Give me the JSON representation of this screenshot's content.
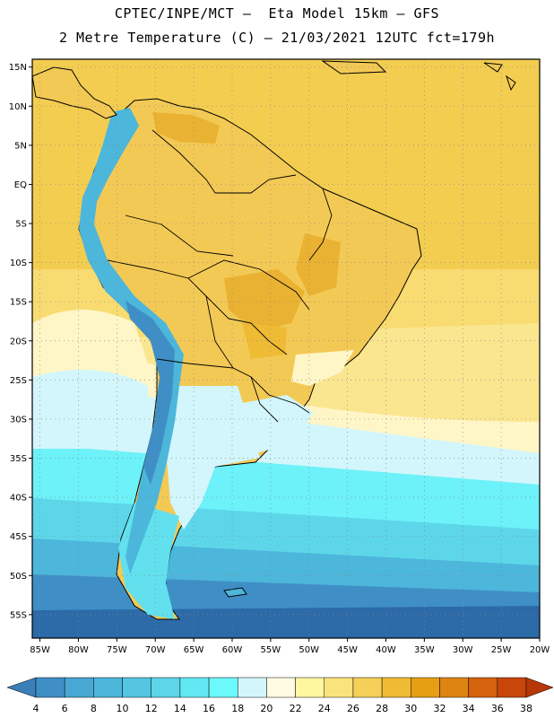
{
  "header": {
    "title_line1": "CPTEC/INPE/MCT –  Eta Model 15km – GFS",
    "title_line2": "2 Metre Temperature (C) – 21/03/2021 12UTC fct=179h"
  },
  "map": {
    "lat_ticks": [
      "15N",
      "10N",
      "5N",
      "EQ",
      "5S",
      "10S",
      "15S",
      "20S",
      "25S",
      "30S",
      "35S",
      "40S",
      "45S",
      "50S",
      "55S"
    ],
    "lon_ticks": [
      "85W",
      "80W",
      "75W",
      "70W",
      "65W",
      "60W",
      "55W",
      "50W",
      "45W",
      "40W",
      "35W",
      "30W",
      "25W",
      "20W"
    ],
    "lat_range": [
      "16N",
      "58S"
    ],
    "lon_range": [
      "86W",
      "20W"
    ],
    "grid": "dotted"
  },
  "colorbar": {
    "levels": [
      "4",
      "6",
      "8",
      "10",
      "12",
      "14",
      "16",
      "18",
      "20",
      "22",
      "24",
      "26",
      "28",
      "30",
      "32",
      "34",
      "36",
      "38"
    ],
    "colors": [
      "#3a7fb8",
      "#3f8fc6",
      "#48a7d3",
      "#4cb6db",
      "#54c6e2",
      "#5dd6ea",
      "#62e8f2",
      "#6cf9fb",
      "#d2f6fb",
      "#fffbe3",
      "#fff6a0",
      "#fbe37b",
      "#f5cf57",
      "#efbb34",
      "#e69f13",
      "#de8412",
      "#d5620d",
      "#c8460a",
      "#b63808"
    ]
  },
  "field_colors": {
    "ocean_cold": "#2c6aa8",
    "ocean_cool": "#44a6d6",
    "ocean_mild": "#6cf2f8",
    "ocean_warm": "#d4f6fb",
    "ocean_hot": "#f6d04a",
    "land_hot": "#e9b232",
    "land_warm": "#f3c955",
    "andes": "#4cb6db",
    "patagonia": "#62e0ee",
    "coastline": "#000000"
  }
}
